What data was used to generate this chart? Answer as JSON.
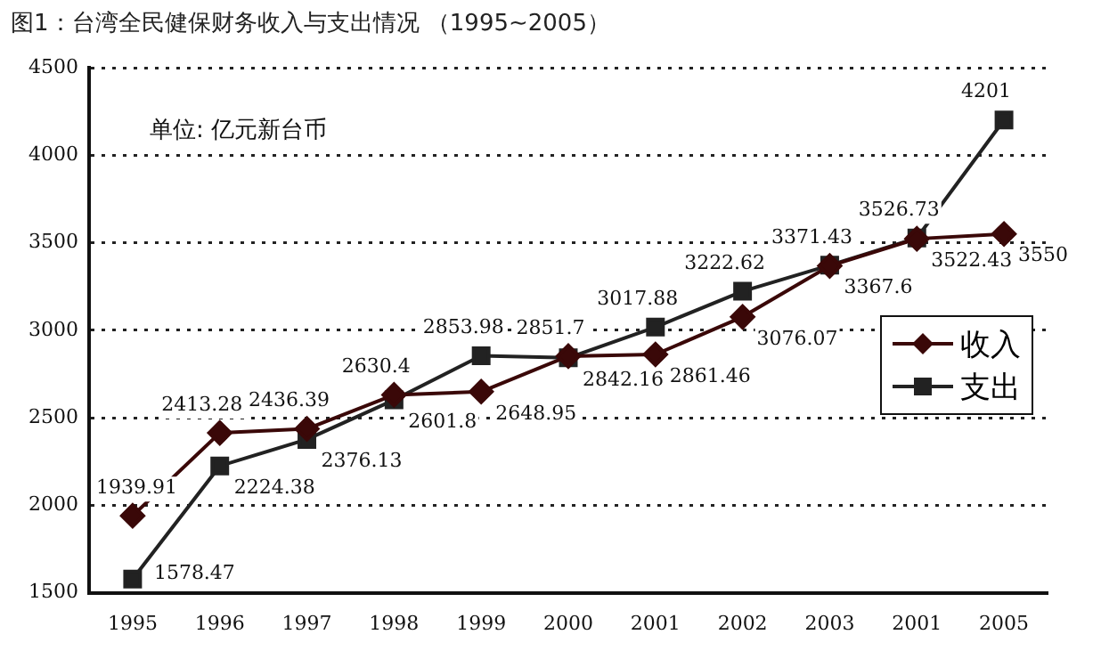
{
  "chart_data": {
    "type": "line",
    "title": "图1：台湾全民健保财务收入与支出情况 （1995~2005）",
    "categories": [
      "1995",
      "1996",
      "1997",
      "1998",
      "1999",
      "2000",
      "2001",
      "2002",
      "2003",
      "2001",
      "2005"
    ],
    "series": [
      {
        "name": "收入",
        "color": "#3a0808",
        "marker": "diamond",
        "values": [
          1939.91,
          2413.28,
          2436.39,
          2630.4,
          2648.95,
          2851.7,
          2861.46,
          3076.07,
          3367.6,
          3522.43,
          3550
        ]
      },
      {
        "name": "支出",
        "color": "#222222",
        "marker": "square",
        "values": [
          1578.47,
          2224.38,
          2376.13,
          2601.8,
          2853.98,
          2842.16,
          3017.88,
          3222.62,
          3371.43,
          3526.73,
          4201
        ]
      }
    ],
    "ylim": [
      1500,
      4500
    ],
    "yticks": [
      1500,
      2000,
      2500,
      3000,
      3500,
      4000,
      4500
    ],
    "grid": "y",
    "legend": "right",
    "data_labels": true,
    "line_style": "solid",
    "annotations": [
      "单位: 亿元新台币"
    ]
  }
}
